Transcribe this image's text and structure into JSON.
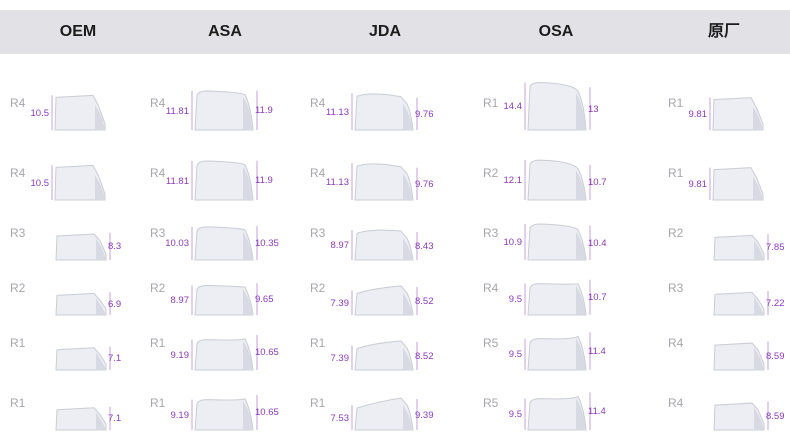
{
  "profiles": [
    {
      "name": "OEM",
      "keys": [
        {
          "row": "R4",
          "left": "10.5",
          "right": ""
        },
        {
          "row": "R4",
          "left": "10.5",
          "right": ""
        },
        {
          "row": "R3",
          "left": "",
          "right": "8.3"
        },
        {
          "row": "R2",
          "left": "",
          "right": "6.9"
        },
        {
          "row": "R1",
          "left": "",
          "right": "7.1"
        },
        {
          "row": "R1",
          "left": "",
          "right": "7.1"
        }
      ]
    },
    {
      "name": "ASA",
      "keys": [
        {
          "row": "R4",
          "left": "11.81",
          "right": "11.9"
        },
        {
          "row": "R4",
          "left": "11.81",
          "right": "11.9"
        },
        {
          "row": "R3",
          "left": "10.03",
          "right": "10.35"
        },
        {
          "row": "R2",
          "left": "8.97",
          "right": "9.65"
        },
        {
          "row": "R1",
          "left": "9.19",
          "right": "10.65"
        },
        {
          "row": "R1",
          "left": "9.19",
          "right": "10.65"
        }
      ]
    },
    {
      "name": "JDA",
      "keys": [
        {
          "row": "R4",
          "left": "11.13",
          "right": "9.76"
        },
        {
          "row": "R4",
          "left": "11.13",
          "right": "9.76"
        },
        {
          "row": "R3",
          "left": "8.97",
          "right": "8.43"
        },
        {
          "row": "R2",
          "left": "7.39",
          "right": "8.52"
        },
        {
          "row": "R1",
          "left": "7.39",
          "right": "8.52"
        },
        {
          "row": "R1",
          "left": "7.53",
          "right": "9.39"
        }
      ]
    },
    {
      "name": "OSA",
      "keys": [
        {
          "row": "R1",
          "left": "14.4",
          "right": "13"
        },
        {
          "row": "R2",
          "left": "12.1",
          "right": "10.7"
        },
        {
          "row": "R3",
          "left": "10.9",
          "right": "10.4"
        },
        {
          "row": "R4",
          "left": "9.5",
          "right": "10.7"
        },
        {
          "row": "R5",
          "left": "9.5",
          "right": "11.4"
        },
        {
          "row": "R5",
          "left": "9.5",
          "right": "11.4"
        }
      ]
    },
    {
      "name": "原厂",
      "keys": [
        {
          "row": "R1",
          "left": "9.81",
          "right": ""
        },
        {
          "row": "R1",
          "left": "9.81",
          "right": ""
        },
        {
          "row": "R2",
          "left": "",
          "right": "7.85"
        },
        {
          "row": "R3",
          "left": "",
          "right": "7.22"
        },
        {
          "row": "R4",
          "left": "",
          "right": "8.59"
        },
        {
          "row": "R4",
          "left": "",
          "right": "8.59"
        }
      ]
    }
  ],
  "colors": {
    "header_bg": "#e2e2e6",
    "dimension_text": "#8a3ab9",
    "row_label": "#a6a6ac",
    "keycap_fill": "#eceef3"
  }
}
